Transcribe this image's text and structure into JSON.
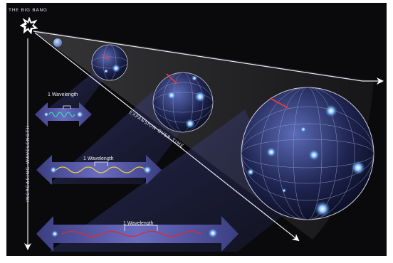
{
  "diagram": {
    "title": "THE BIG BANG",
    "axis_label": "INCREASING WAVELENGTH",
    "expansion_label": "EXPANSION OVER TIME",
    "wavelength_labels": [
      "1 Wavelength",
      "1 Wavelength",
      "1 Wavelength"
    ],
    "wave_colors": [
      "#2fe0b8",
      "#e8d23a",
      "#e02a2a"
    ],
    "background_color": "#0a0a0d",
    "arrow_band_color": "#6a6cc0"
  }
}
